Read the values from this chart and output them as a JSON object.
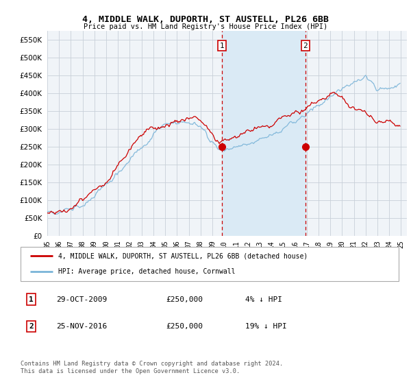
{
  "title": "4, MIDDLE WALK, DUPORTH, ST AUSTELL, PL26 6BB",
  "subtitle": "Price paid vs. HM Land Registry's House Price Index (HPI)",
  "ytick_values": [
    0,
    50000,
    100000,
    150000,
    200000,
    250000,
    300000,
    350000,
    400000,
    450000,
    500000,
    550000
  ],
  "ylim": [
    0,
    575000
  ],
  "xlim_start": 1995.0,
  "xlim_end": 2025.5,
  "sale1_year": 2009.83,
  "sale1_price": 250000,
  "sale2_year": 2016.9,
  "sale2_price": 250000,
  "hpi_color": "#7ab4d8",
  "property_color": "#cc0000",
  "shade_color": "#daeaf5",
  "legend_property": "4, MIDDLE WALK, DUPORTH, ST AUSTELL, PL26 6BB (detached house)",
  "legend_hpi": "HPI: Average price, detached house, Cornwall",
  "footer": "Contains HM Land Registry data © Crown copyright and database right 2024.\nThis data is licensed under the Open Government Licence v3.0.",
  "plot_bg": "#f0f4f8",
  "grid_color": "#c8d0d8"
}
